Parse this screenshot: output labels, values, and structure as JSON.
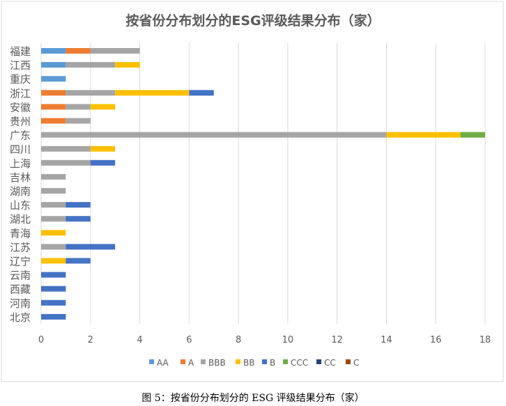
{
  "chart_data": {
    "type": "bar",
    "orientation": "horizontal",
    "stacked": true,
    "title": "按省份分布划分的ESG评级结果分布（家）",
    "caption": "图 5：按省份分布划分的 ESG 评级结果分布（家）",
    "categories": [
      "福建",
      "江西",
      "重庆",
      "浙江",
      "安徽",
      "贵州",
      "广东",
      "四川",
      "上海",
      "吉林",
      "湖南",
      "山东",
      "湖北",
      "青海",
      "江苏",
      "辽宁",
      "云南",
      "西藏",
      "河南",
      "北京"
    ],
    "series": [
      {
        "name": "AA",
        "color": "#5B9BD5",
        "values": [
          1,
          1,
          1,
          0,
          0,
          0,
          0,
          0,
          0,
          0,
          0,
          0,
          0,
          0,
          0,
          0,
          0,
          0,
          0,
          0
        ]
      },
      {
        "name": "A",
        "color": "#ED7D31",
        "values": [
          1,
          0,
          0,
          1,
          1,
          1,
          0,
          0,
          0,
          0,
          0,
          0,
          0,
          0,
          0,
          0,
          0,
          0,
          0,
          0
        ]
      },
      {
        "name": "BBB",
        "color": "#A5A5A5",
        "values": [
          2,
          2,
          0,
          2,
          1,
          1,
          14,
          2,
          2,
          1,
          1,
          1,
          1,
          0,
          1,
          0,
          0,
          0,
          0,
          0
        ]
      },
      {
        "name": "BB",
        "color": "#FFC000",
        "values": [
          0,
          1,
          0,
          3,
          1,
          0,
          3,
          1,
          0,
          0,
          0,
          0,
          0,
          1,
          0,
          1,
          0,
          0,
          0,
          0
        ]
      },
      {
        "name": "B",
        "color": "#4472C4",
        "values": [
          0,
          0,
          0,
          1,
          0,
          0,
          0,
          0,
          1,
          0,
          0,
          1,
          1,
          0,
          2,
          1,
          1,
          1,
          1,
          1
        ]
      },
      {
        "name": "CCC",
        "color": "#70AD47",
        "values": [
          0,
          0,
          0,
          0,
          0,
          0,
          1,
          0,
          0,
          0,
          0,
          0,
          0,
          0,
          0,
          0,
          0,
          0,
          0,
          0
        ]
      },
      {
        "name": "CC",
        "color": "#264478",
        "values": [
          0,
          0,
          0,
          0,
          0,
          0,
          0,
          0,
          0,
          0,
          0,
          0,
          0,
          0,
          0,
          0,
          0,
          0,
          0,
          0
        ]
      },
      {
        "name": "C",
        "color": "#9E480E",
        "values": [
          0,
          0,
          0,
          0,
          0,
          0,
          0,
          0,
          0,
          0,
          0,
          0,
          0,
          0,
          0,
          0,
          0,
          0,
          0,
          0
        ]
      }
    ],
    "xlim": [
      0,
      18
    ],
    "xticks": [
      "0",
      "2",
      "4",
      "6",
      "8",
      "10",
      "12",
      "14",
      "16",
      "18"
    ],
    "grid": true,
    "legend": "bottom"
  }
}
